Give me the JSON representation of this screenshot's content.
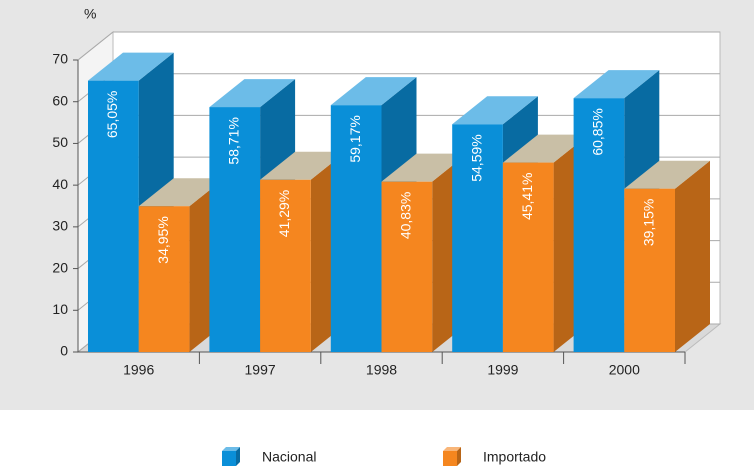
{
  "chart_data": {
    "type": "bar3d",
    "y_label": "%",
    "categories": [
      "1996",
      "1997",
      "1998",
      "1999",
      "2000"
    ],
    "series": [
      {
        "name": "Nacional",
        "color": "#0a8fd8",
        "values": [
          65.05,
          58.71,
          59.17,
          54.59,
          60.85
        ],
        "value_labels": [
          "65,05%",
          "58,71%",
          "59,17%",
          "54,59%",
          "60,85%"
        ]
      },
      {
        "name": "Importado",
        "color": "#f5861f",
        "values": [
          34.95,
          41.29,
          40.83,
          45.41,
          39.15
        ],
        "value_labels": [
          "34,95%",
          "41,29%",
          "40,83%",
          "45,41%",
          "39,15%"
        ]
      }
    ],
    "ylim": [
      0,
      70
    ],
    "yticks": [
      0,
      10,
      20,
      30,
      40,
      50,
      60,
      70
    ],
    "grid": true
  }
}
